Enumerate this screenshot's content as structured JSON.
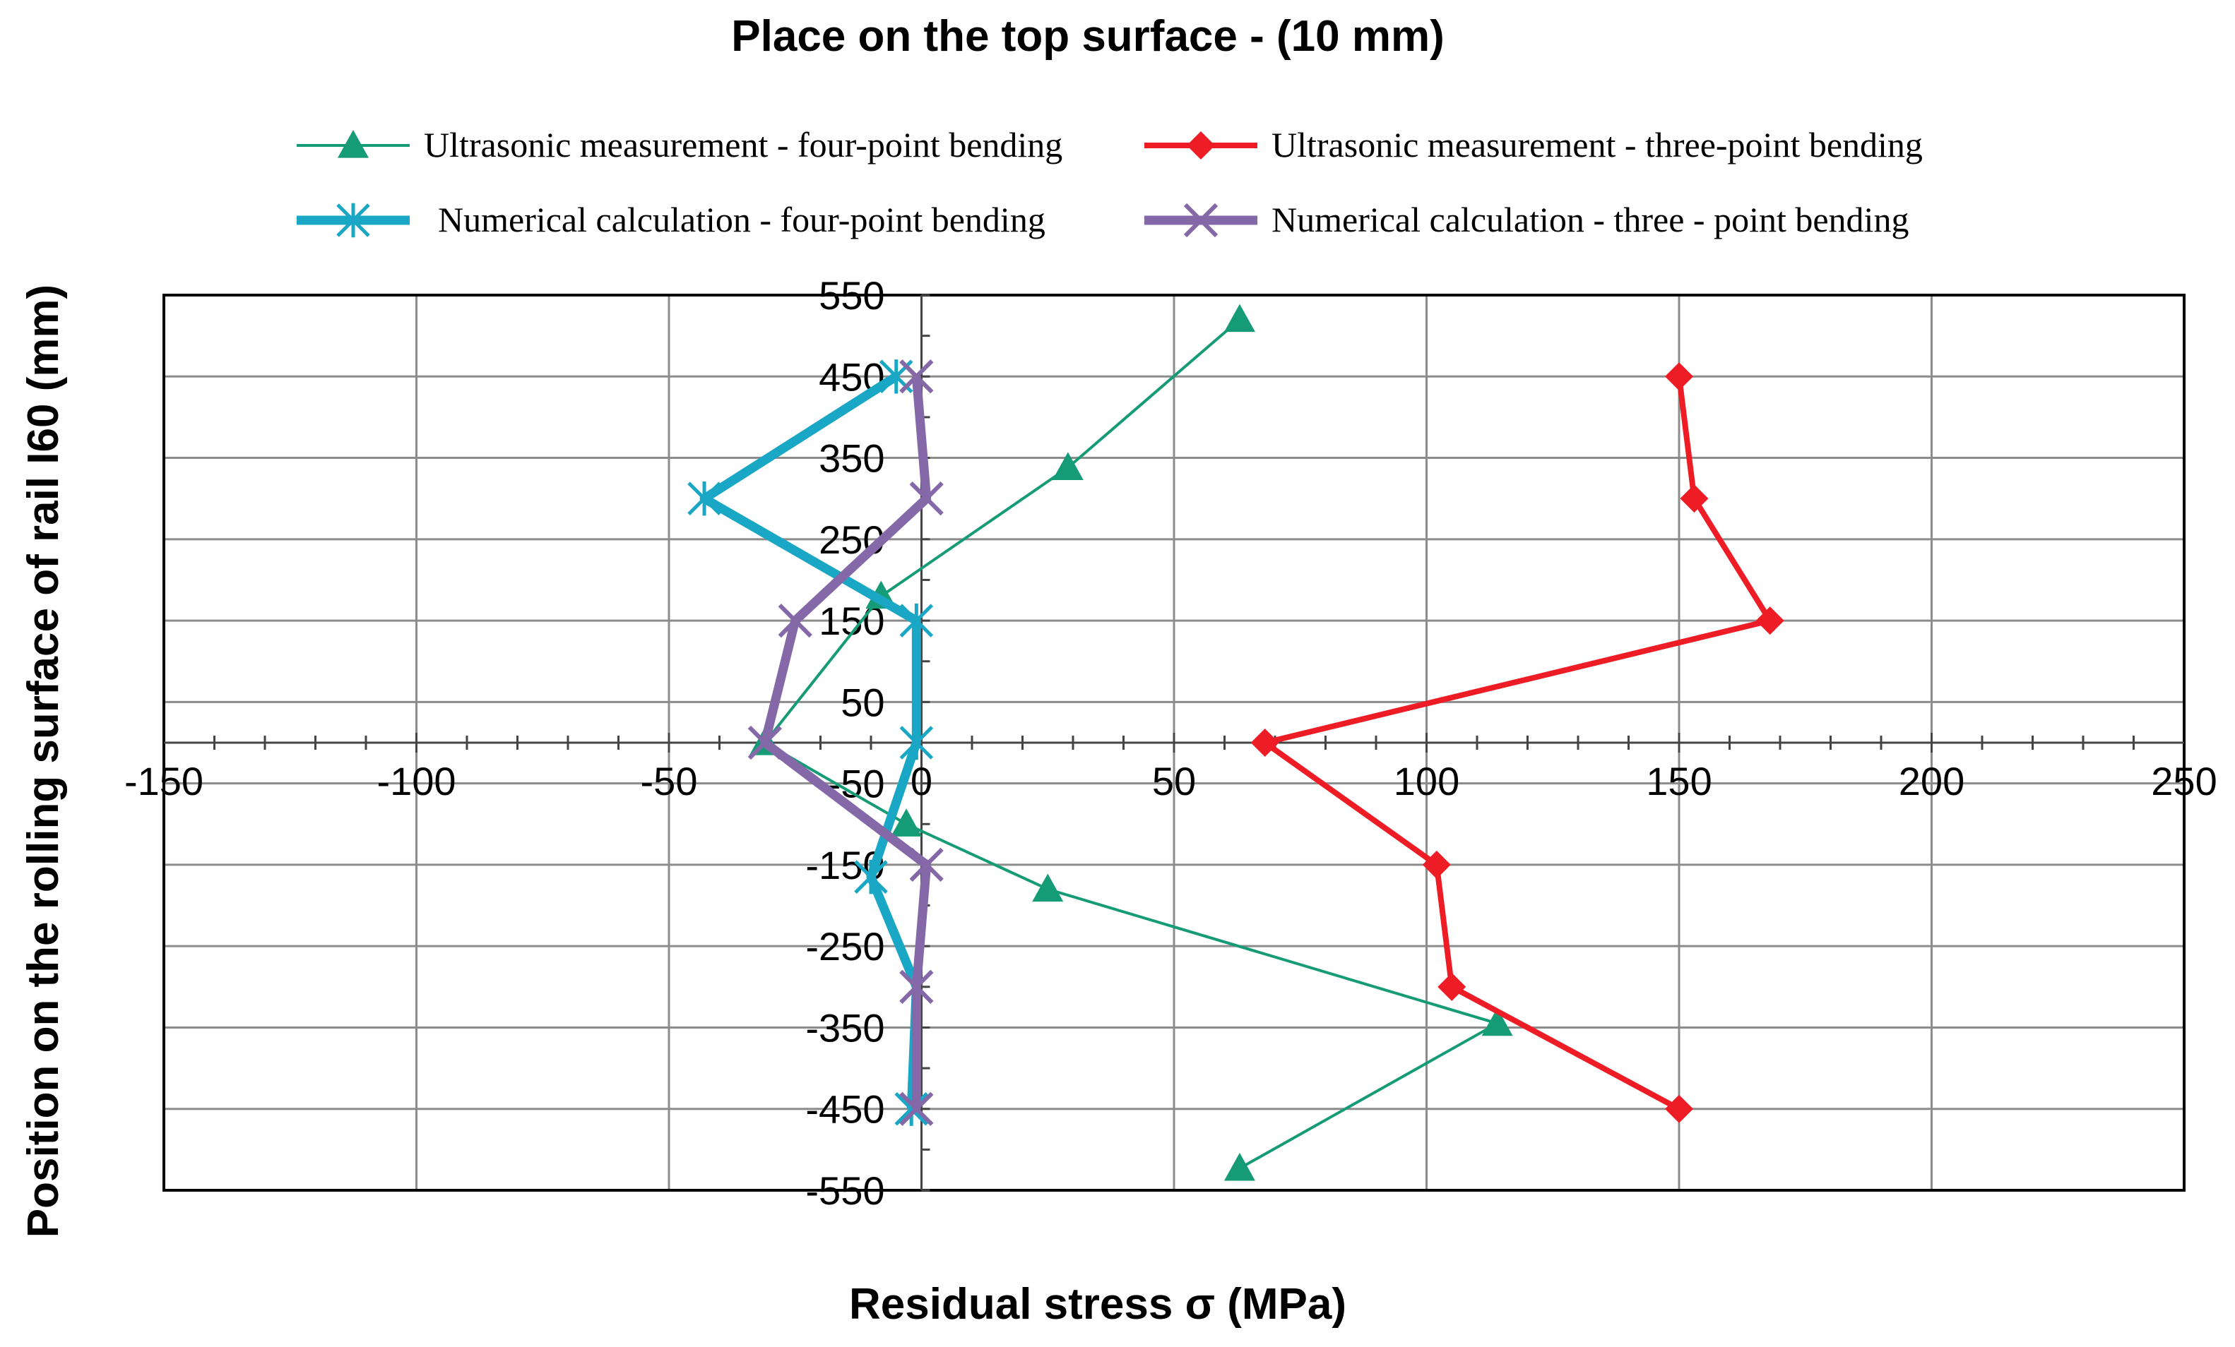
{
  "chart_data": {
    "type": "line",
    "title": "Place on the top surface - (10 mm)",
    "xlabel": "Residual stress σ (MPa)",
    "ylabel": "Position on the rolling surface of rail I60  (mm)",
    "xlim": [
      -150,
      250
    ],
    "ylim": [
      -550,
      550
    ],
    "x_ticks": [
      -150,
      -100,
      -50,
      0,
      50,
      100,
      150,
      200,
      250
    ],
    "x_tick_labels": [
      "-150",
      "-100",
      "-50",
      "0",
      "50",
      "100",
      "150",
      "200",
      "250"
    ],
    "y_ticks": [
      550,
      450,
      350,
      250,
      150,
      50,
      -50,
      -150,
      -250,
      -350,
      -450,
      -550
    ],
    "y_tick_labels": [
      "550",
      "450",
      "350",
      "250",
      "150",
      "50",
      "-50",
      "-150",
      "-250",
      "-350",
      "-450",
      "-550"
    ],
    "x_minor_step": 10,
    "grid": true,
    "legend_position": "top",
    "series": [
      {
        "name": "Ultrasonic measurement - four-point bending",
        "color": "#169b77",
        "marker": "triangle",
        "line": "thin",
        "points": [
          [
            63,
            520
          ],
          [
            29,
            338
          ],
          [
            -8,
            180
          ],
          [
            -31,
            0
          ],
          [
            -3,
            -100
          ],
          [
            25,
            -180
          ],
          [
            114,
            -345
          ],
          [
            63,
            -523
          ]
        ]
      },
      {
        "name": "Ultrasonic measurement - three-point bending",
        "color": "#ee1c25",
        "marker": "diamond",
        "line": "medium",
        "points": [
          [
            150,
            450
          ],
          [
            153,
            300
          ],
          [
            168,
            150
          ],
          [
            68,
            0
          ],
          [
            102,
            -150
          ],
          [
            105,
            -300
          ],
          [
            150,
            -450
          ]
        ]
      },
      {
        "name": "Numerical calculation -  four-point bending",
        "color": "#1aa7c6",
        "marker": "asterisk",
        "line": "thick",
        "points": [
          [
            -5,
            450
          ],
          [
            -43,
            300
          ],
          [
            -1,
            150
          ],
          [
            -1,
            0
          ],
          [
            -10,
            -165
          ],
          [
            -1,
            -300
          ],
          [
            -2,
            -450
          ]
        ]
      },
      {
        "name": "Numerical calculation - three - point bending",
        "color": "#8568a8",
        "marker": "x",
        "line": "thick",
        "points": [
          [
            -1,
            450
          ],
          [
            1,
            300
          ],
          [
            -25,
            150
          ],
          [
            -31,
            0
          ],
          [
            1,
            -150
          ],
          [
            -1,
            -300
          ],
          [
            -1,
            -450
          ]
        ]
      }
    ]
  }
}
